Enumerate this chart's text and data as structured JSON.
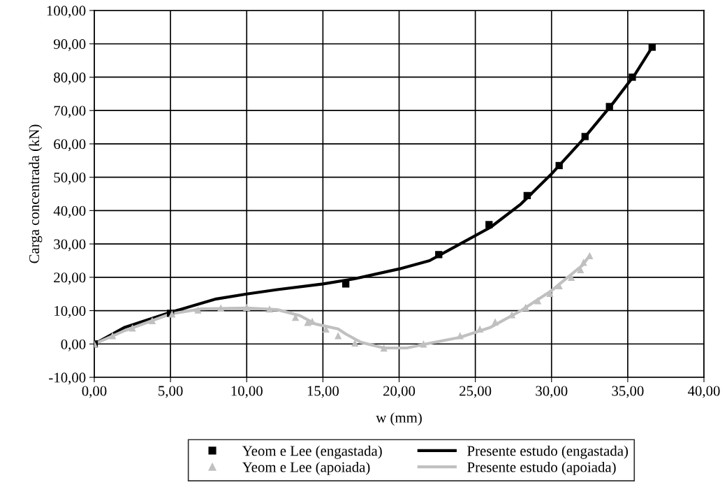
{
  "chart_data": {
    "type": "line",
    "xlabel": "w (mm)",
    "ylabel": "Carga concentrada (kN)",
    "xlim": [
      0,
      40
    ],
    "ylim": [
      -10,
      100
    ],
    "xticks": [
      {
        "value": 0,
        "label": "0,00"
      },
      {
        "value": 5,
        "label": "5,00"
      },
      {
        "value": 10,
        "label": "10,00"
      },
      {
        "value": 15,
        "label": "15,00"
      },
      {
        "value": 20,
        "label": "20,00"
      },
      {
        "value": 25,
        "label": "25,00"
      },
      {
        "value": 30,
        "label": "30,00"
      },
      {
        "value": 35,
        "label": "35,00"
      },
      {
        "value": 40,
        "label": "40,00"
      }
    ],
    "yticks": [
      {
        "value": -10,
        "label": "-10,00"
      },
      {
        "value": 0,
        "label": "0,00"
      },
      {
        "value": 10,
        "label": "10,00"
      },
      {
        "value": 20,
        "label": "20,00"
      },
      {
        "value": 30,
        "label": "30,00"
      },
      {
        "value": 40,
        "label": "40,00"
      },
      {
        "value": 50,
        "label": "50,00"
      },
      {
        "value": 60,
        "label": "60,00"
      },
      {
        "value": 70,
        "label": "70,00"
      },
      {
        "value": 80,
        "label": "80,00"
      },
      {
        "value": 90,
        "label": "90,00"
      },
      {
        "value": 100,
        "label": "100,00"
      }
    ],
    "grid": true,
    "legend": "bottom",
    "series": [
      {
        "name": "Yeom e Lee (engastada)",
        "type": "scatter",
        "marker": "square",
        "color": "#000000",
        "x": [
          0,
          5.0,
          16.5,
          22.6,
          25.9,
          28.4,
          30.5,
          32.2,
          33.8,
          35.3,
          36.6
        ],
        "values": [
          0,
          9.2,
          18,
          26.8,
          35.8,
          44.5,
          53.5,
          62.2,
          71.2,
          80,
          89
        ]
      },
      {
        "name": "Presente estudo (engastada)",
        "marker": "none",
        "line_style": "solid",
        "color": "#000000",
        "x": [
          0,
          2,
          5,
          8,
          10,
          12,
          15,
          17,
          20,
          22,
          24,
          26,
          28,
          30,
          32,
          34,
          35.5,
          36.6
        ],
        "values": [
          0,
          5,
          9.5,
          13.5,
          15,
          16.3,
          18,
          19.5,
          22.5,
          25,
          30,
          35,
          42,
          51,
          61,
          72,
          81,
          89
        ]
      },
      {
        "name": "Yeom e Lee (apoiada)",
        "type": "scatter",
        "marker": "triangle",
        "color": "#c0c0c0",
        "x": [
          0,
          1.2,
          2.5,
          3.8,
          5.1,
          6.8,
          8.3,
          10,
          11.5,
          13.2,
          14,
          14.3,
          15.2,
          16,
          17.1,
          19,
          21.6,
          24,
          25.3,
          26.3,
          27.4,
          28.3,
          29.1,
          29.9,
          30.5,
          31.3,
          31.9,
          32.1,
          32.5
        ],
        "values": [
          0,
          2.5,
          4.8,
          7,
          9,
          10.2,
          10.8,
          11,
          10.5,
          8,
          6.5,
          6.8,
          4.5,
          2.5,
          0.3,
          -1.2,
          0,
          2.5,
          4.5,
          6.6,
          8.8,
          11,
          13,
          15.2,
          17.5,
          20,
          22.3,
          24.5,
          26.5
        ]
      },
      {
        "name": "Presente estudo (apoiada)",
        "marker": "none",
        "line_style": "solid",
        "color": "#c0c0c0",
        "x": [
          0,
          2,
          5,
          7,
          10,
          12,
          13.5,
          14.5,
          16,
          16.5,
          17.5,
          19,
          20.5,
          22,
          24,
          26,
          28,
          30,
          32,
          32.5
        ],
        "values": [
          0,
          4,
          9,
          10.5,
          10.8,
          10.3,
          8.5,
          6,
          4.5,
          3,
          0.5,
          -1.2,
          -1.2,
          0.2,
          2,
          5,
          10,
          16,
          23.5,
          26.5
        ]
      }
    ]
  }
}
